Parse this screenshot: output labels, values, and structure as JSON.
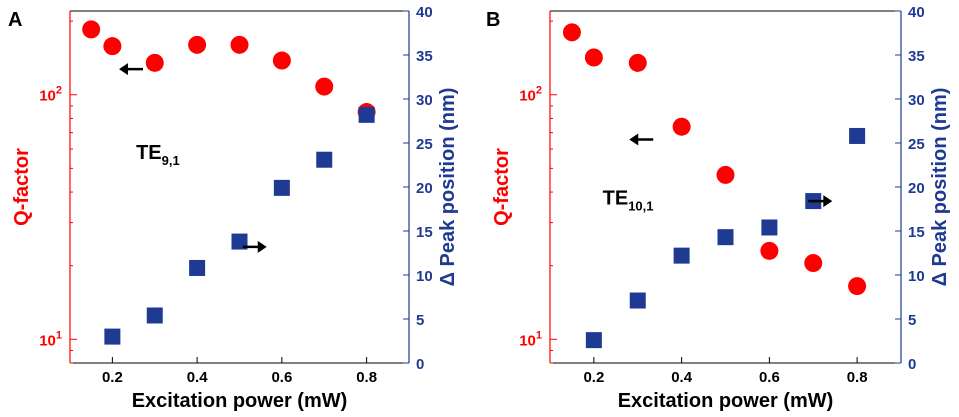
{
  "chart_data": [
    {
      "type": "scatter",
      "panel_label": "A",
      "mode_label": {
        "base": "TE",
        "sub": "9,1"
      },
      "xlabel": "Excitation power (mW)",
      "xlim": [
        0.1,
        0.9
      ],
      "xticks": [
        0.2,
        0.4,
        0.6,
        0.8
      ],
      "xtick_labels": [
        "0.2",
        "0.4",
        "0.6",
        "0.8"
      ],
      "left_axis": {
        "label": "Q-factor",
        "scale": "log",
        "ylim": [
          8,
          220
        ],
        "ticks": [
          10,
          100
        ],
        "tick_labels": [
          {
            "base": "10",
            "exp": "1"
          },
          {
            "base": "10",
            "exp": "2"
          }
        ],
        "color": "#ff0000"
      },
      "right_axis": {
        "label": "Δ Peak position (nm)",
        "scale": "linear",
        "ylim": [
          0,
          40
        ],
        "ticks": [
          0,
          5,
          10,
          15,
          20,
          25,
          30,
          35,
          40
        ],
        "tick_labels": [
          "0",
          "5",
          "10",
          "15",
          "20",
          "25",
          "30",
          "35",
          "40"
        ],
        "color": "#1f3a93"
      },
      "series": [
        {
          "name": "Q-factor",
          "axis": "left",
          "marker": "circle",
          "color": "#ff0000",
          "x": [
            0.15,
            0.2,
            0.3,
            0.4,
            0.5,
            0.6,
            0.7,
            0.8
          ],
          "y": [
            185,
            158,
            135,
            160,
            160,
            138,
            108,
            85
          ]
        },
        {
          "name": "Δ Peak position",
          "axis": "right",
          "marker": "square",
          "color": "#1f3a93",
          "x": [
            0.2,
            0.3,
            0.4,
            0.5,
            0.6,
            0.7,
            0.8
          ],
          "y": [
            3,
            5.4,
            10.8,
            13.8,
            19.9,
            23.1,
            28.2
          ]
        }
      ],
      "arrows": [
        {
          "direction": "left",
          "x": 0.18,
          "y": 0.835
        },
        {
          "direction": "right",
          "x": 0.545,
          "y": 0.33
        }
      ],
      "mode_label_pos": {
        "x": 0.195,
        "y": 0.58
      }
    },
    {
      "type": "scatter",
      "panel_label": "B",
      "mode_label": {
        "base": "TE",
        "sub": "10,1"
      },
      "xlabel": "Excitation power (mW)",
      "xlim": [
        0.1,
        0.9
      ],
      "xticks": [
        0.2,
        0.4,
        0.6,
        0.8
      ],
      "xtick_labels": [
        "0.2",
        "0.4",
        "0.6",
        "0.8"
      ],
      "left_axis": {
        "label": "Q-factor",
        "scale": "log",
        "ylim": [
          8,
          220
        ],
        "ticks": [
          10,
          100
        ],
        "tick_labels": [
          {
            "base": "10",
            "exp": "1"
          },
          {
            "base": "10",
            "exp": "2"
          }
        ],
        "color": "#ff0000"
      },
      "right_axis": {
        "label": "Δ Peak position (nm)",
        "scale": "linear",
        "ylim": [
          0,
          40
        ],
        "ticks": [
          0,
          5,
          10,
          15,
          20,
          25,
          30,
          35,
          40
        ],
        "tick_labels": [
          "0",
          "5",
          "10",
          "15",
          "20",
          "25",
          "30",
          "35",
          "40"
        ],
        "color": "#1f3a93"
      },
      "series": [
        {
          "name": "Q-factor",
          "axis": "left",
          "marker": "circle",
          "color": "#ff0000",
          "x": [
            0.15,
            0.2,
            0.3,
            0.4,
            0.5,
            0.6,
            0.7,
            0.8
          ],
          "y": [
            180,
            142,
            135,
            74,
            47,
            23,
            20.5,
            16.5
          ]
        },
        {
          "name": "Δ Peak position",
          "axis": "right",
          "marker": "square",
          "color": "#1f3a93",
          "x": [
            0.2,
            0.3,
            0.4,
            0.5,
            0.6,
            0.7,
            0.8
          ],
          "y": [
            2.6,
            7.1,
            12.2,
            14.3,
            15.4,
            18.4,
            25.8
          ]
        }
      ],
      "arrows": [
        {
          "direction": "left",
          "x": 0.26,
          "y": 0.635
        },
        {
          "direction": "right",
          "x": 0.77,
          "y": 0.46
        }
      ],
      "mode_label_pos": {
        "x": 0.15,
        "y": 0.45
      }
    }
  ]
}
